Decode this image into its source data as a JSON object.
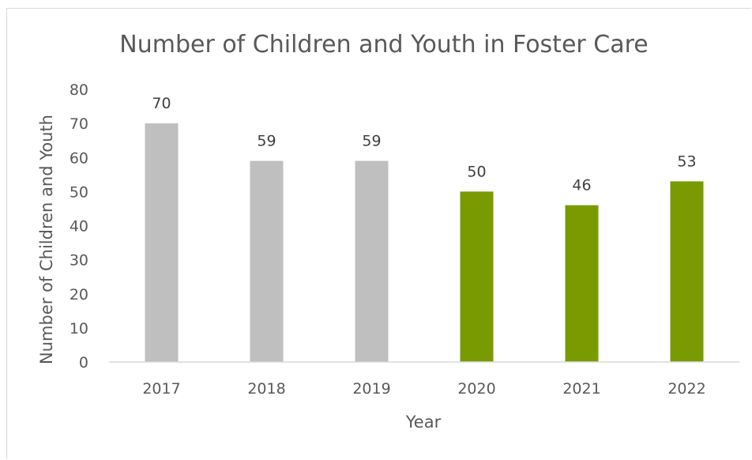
{
  "chart_data": {
    "type": "bar",
    "title": "Number of Children and Youth in Foster Care",
    "xlabel": "Year",
    "ylabel": "Number of Children and Youth",
    "categories": [
      "2017",
      "2018",
      "2019",
      "2020",
      "2021",
      "2022"
    ],
    "values": [
      70,
      59,
      59,
      50,
      46,
      53
    ],
    "bar_colors": [
      "#bfbfbf",
      "#bfbfbf",
      "#bfbfbf",
      "#7a9a01",
      "#7a9a01",
      "#7a9a01"
    ],
    "ylim": [
      0,
      80
    ],
    "yticks": [
      0,
      10,
      20,
      30,
      40,
      50,
      60,
      70,
      80
    ],
    "grid": false,
    "legend": "none",
    "data_labels": true
  }
}
